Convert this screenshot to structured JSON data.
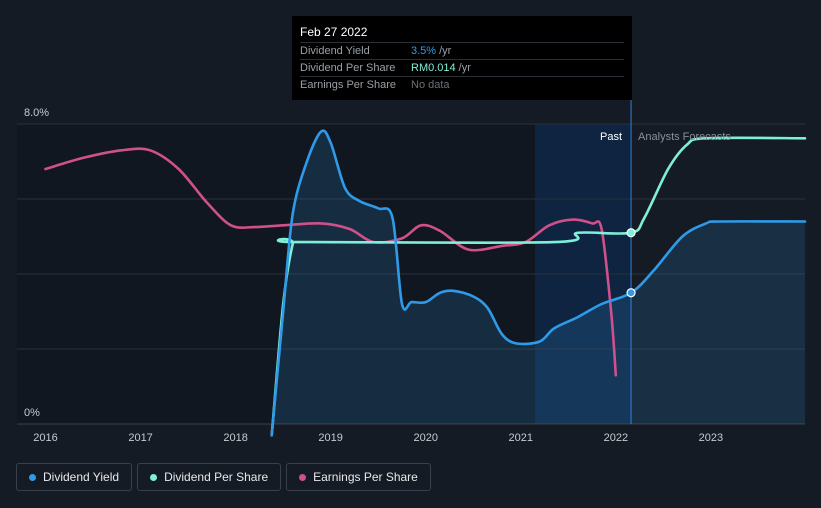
{
  "tooltip": {
    "date": "Feb 27 2022",
    "rows": [
      {
        "label": "Dividend Yield",
        "value": "3.5%",
        "unit": "/yr"
      },
      {
        "label": "Dividend Per Share",
        "value": "RM0.014",
        "unit": "/yr"
      },
      {
        "label": "Earnings Per Share",
        "value": "No data",
        "unit": ""
      }
    ]
  },
  "region_labels": {
    "past": "Past",
    "forecast": "Analysts Forecasts"
  },
  "legend": [
    {
      "label": "Dividend Yield",
      "color": "#2f9be8"
    },
    {
      "label": "Dividend Per Share",
      "color": "#7ff0d8"
    },
    {
      "label": "Earnings Per Share",
      "color": "#d0508c"
    }
  ],
  "chart_data": {
    "type": "line",
    "x_ticks": [
      "2016",
      "2017",
      "2018",
      "2019",
      "2020",
      "2021",
      "2022",
      "2023"
    ],
    "y_ticks": [
      "8.0%",
      "0%"
    ],
    "y_range_pct": [
      0,
      8
    ],
    "x_range_year": [
      2015.7,
      2023.99
    ],
    "past_forecast_split": 2022.16,
    "highlight_band": [
      2021.15,
      2022.16
    ],
    "series": [
      {
        "name": "Dividend Yield",
        "color": "#2f9be8",
        "unit": "%",
        "points": [
          [
            2018.38,
            -0.3
          ],
          [
            2018.5,
            3.0
          ],
          [
            2018.6,
            5.6
          ],
          [
            2018.75,
            7.0
          ],
          [
            2018.9,
            7.8
          ],
          [
            2019.0,
            7.5
          ],
          [
            2019.15,
            6.3
          ],
          [
            2019.3,
            5.95
          ],
          [
            2019.5,
            5.75
          ],
          [
            2019.65,
            5.5
          ],
          [
            2019.75,
            3.2
          ],
          [
            2019.85,
            3.25
          ],
          [
            2020.0,
            3.25
          ],
          [
            2020.15,
            3.5
          ],
          [
            2020.3,
            3.55
          ],
          [
            2020.5,
            3.4
          ],
          [
            2020.65,
            3.1
          ],
          [
            2020.8,
            2.4
          ],
          [
            2020.95,
            2.15
          ],
          [
            2021.2,
            2.2
          ],
          [
            2021.35,
            2.55
          ],
          [
            2021.6,
            2.85
          ],
          [
            2021.85,
            3.2
          ],
          [
            2022.16,
            3.5
          ],
          [
            2022.4,
            4.1
          ],
          [
            2022.7,
            5.0
          ],
          [
            2022.95,
            5.35
          ],
          [
            2023.1,
            5.4
          ],
          [
            2023.99,
            5.4
          ]
        ]
      },
      {
        "name": "Dividend Per Share",
        "color": "#7ff0d8",
        "points": [
          [
            2018.38,
            -0.3
          ],
          [
            2018.5,
            3.2
          ],
          [
            2018.6,
            4.8
          ],
          [
            2018.65,
            4.85
          ],
          [
            2021.35,
            4.85
          ],
          [
            2021.6,
            5.1
          ],
          [
            2022.16,
            5.1
          ],
          [
            2022.3,
            5.5
          ],
          [
            2022.55,
            6.8
          ],
          [
            2022.75,
            7.45
          ],
          [
            2022.95,
            7.62
          ],
          [
            2023.99,
            7.62
          ]
        ]
      },
      {
        "name": "Earnings Per Share",
        "color": "#d0508c",
        "points": [
          [
            2016.0,
            6.8
          ],
          [
            2016.4,
            7.1
          ],
          [
            2016.8,
            7.3
          ],
          [
            2017.1,
            7.3
          ],
          [
            2017.4,
            6.8
          ],
          [
            2017.7,
            5.9
          ],
          [
            2017.95,
            5.3
          ],
          [
            2018.2,
            5.25
          ],
          [
            2018.5,
            5.3
          ],
          [
            2018.9,
            5.35
          ],
          [
            2019.2,
            5.2
          ],
          [
            2019.45,
            4.85
          ],
          [
            2019.75,
            4.95
          ],
          [
            2019.95,
            5.3
          ],
          [
            2020.15,
            5.15
          ],
          [
            2020.45,
            4.65
          ],
          [
            2020.8,
            4.75
          ],
          [
            2021.05,
            4.85
          ],
          [
            2021.3,
            5.3
          ],
          [
            2021.55,
            5.45
          ],
          [
            2021.75,
            5.35
          ],
          [
            2021.85,
            5.2
          ],
          [
            2021.95,
            3.0
          ],
          [
            2022.0,
            1.3
          ]
        ]
      }
    ]
  }
}
